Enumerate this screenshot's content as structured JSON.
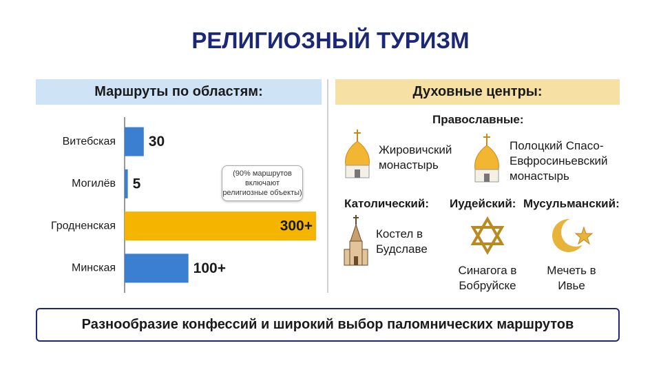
{
  "title": "РЕЛИГИОЗНЫЙ ТУРИЗМ",
  "chart_data": {
    "type": "bar",
    "orientation": "horizontal",
    "title": "Маршруты по областям:",
    "categories": [
      "Витебская",
      "Могилёв",
      "Гродненская",
      "Минская"
    ],
    "values": [
      30,
      5,
      300,
      100
    ],
    "value_labels": [
      "30",
      "5",
      "300+",
      "100+"
    ],
    "colors": [
      "#3a7fd0",
      "#3a7fd0",
      "#f5b400",
      "#3a7fd0"
    ],
    "annotation": "(90% маршрутов включают религиозные объекты)"
  },
  "centers": {
    "title": "Духовные центры:",
    "orthodox": {
      "label": "Православные:",
      "items": [
        "Жировичский монастырь",
        "Полоцкий Спасо-Евфросиньевский монастырь"
      ]
    },
    "catholic": {
      "label": "Католический:",
      "item": "Костел в Будславе"
    },
    "jewish": {
      "label": "Иудейский:",
      "item": "Синагога в Бобруйске"
    },
    "muslim": {
      "label": "Мусульманский:",
      "item": "Мечеть в Ивье"
    }
  },
  "footer": "Разнообразие конфессий и широкий выбор паломнических маршрутов"
}
